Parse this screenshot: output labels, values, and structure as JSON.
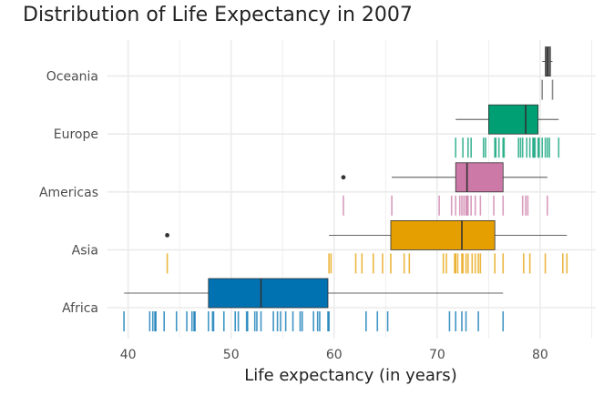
{
  "chart_data": {
    "type": "boxplot",
    "title": "Distribution of Life Expectancy in 2007",
    "xlabel": "Life expectancy (in years)",
    "ylabel": "",
    "xlim": [
      38,
      85.4
    ],
    "x_ticks": [
      40,
      50,
      60,
      70,
      80
    ],
    "grid": true,
    "legend": "none",
    "categories": [
      "Africa",
      "Asia",
      "Americas",
      "Europe",
      "Oceania"
    ],
    "series": [
      {
        "name": "Africa",
        "color": "#0072B2",
        "whisker_low": 39.6,
        "q1": 47.8,
        "median": 52.9,
        "q3": 59.4,
        "whisker_high": 76.4,
        "outliers": [],
        "points": [
          39.6,
          42.1,
          42.4,
          42.6,
          42.7,
          43.5,
          44.7,
          45.7,
          46.2,
          46.4,
          46.5,
          47.8,
          48.2,
          48.3,
          49.3,
          50.4,
          50.7,
          51.5,
          51.6,
          52.3,
          52.5,
          52.9,
          54.1,
          54.5,
          54.8,
          55.3,
          56.0,
          56.7,
          56.9,
          58.0,
          58.4,
          58.6,
          59.4,
          59.5,
          63.1,
          64.2,
          65.2,
          71.2,
          71.8,
          72.4,
          72.8,
          74.0,
          76.4
        ]
      },
      {
        "name": "Asia",
        "color": "#E69F00",
        "whisker_low": 59.5,
        "q1": 65.5,
        "median": 72.4,
        "q3": 75.6,
        "whisker_high": 82.6,
        "outliers": [
          43.8
        ],
        "points": [
          43.8,
          59.5,
          59.7,
          62.1,
          62.7,
          63.8,
          64.7,
          65.5,
          66.8,
          67.3,
          70.6,
          70.9,
          71.7,
          71.8,
          72.0,
          72.4,
          72.5,
          72.8,
          73.0,
          73.4,
          73.7,
          74.0,
          74.2,
          75.6,
          76.4,
          78.4,
          79.0,
          80.5,
          82.2,
          82.6
        ]
      },
      {
        "name": "Americas",
        "color": "#CC79A7",
        "whisker_low": 65.6,
        "q1": 71.8,
        "median": 72.9,
        "q3": 76.4,
        "whisker_high": 80.7,
        "outliers": [
          60.9
        ],
        "points": [
          60.9,
          65.6,
          70.2,
          71.4,
          71.8,
          72.2,
          72.4,
          72.6,
          72.8,
          72.9,
          73.0,
          73.3,
          73.7,
          74.2,
          75.5,
          76.4,
          78.3,
          78.6,
          78.8,
          80.7
        ]
      },
      {
        "name": "Europe",
        "color": "#009E73",
        "whisker_low": 71.8,
        "q1": 75.0,
        "median": 78.6,
        "q3": 79.8,
        "whisker_high": 81.8,
        "outliers": [],
        "points": [
          71.8,
          72.5,
          73.0,
          73.3,
          74.5,
          74.7,
          75.6,
          75.7,
          76.0,
          76.4,
          76.5,
          77.9,
          78.1,
          78.3,
          78.7,
          79.0,
          79.3,
          79.4,
          79.5,
          79.8,
          79.9,
          80.2,
          80.5,
          80.7,
          80.9,
          81.8
        ]
      },
      {
        "name": "Oceania",
        "color": "#666666",
        "whisker_low": 80.2,
        "q1": 80.5,
        "median": 80.7,
        "q3": 81.0,
        "whisker_high": 81.2,
        "outliers": [],
        "points": [
          80.2,
          81.2
        ]
      }
    ]
  }
}
